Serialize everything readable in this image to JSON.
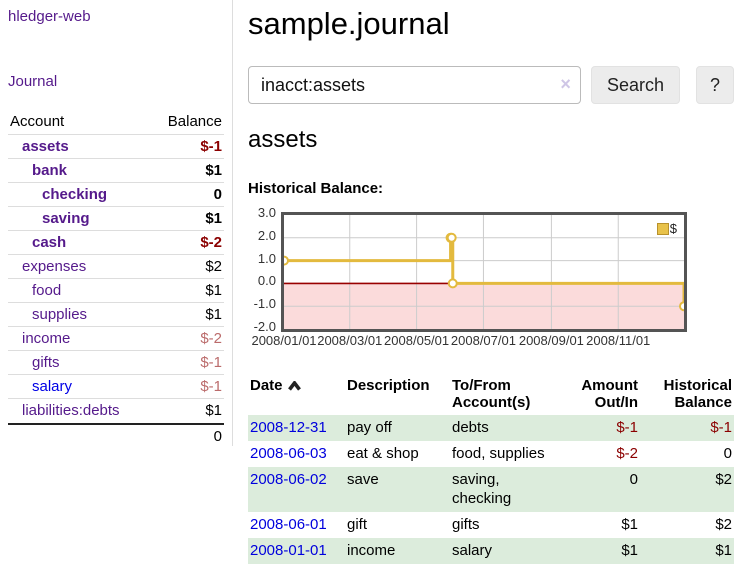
{
  "sidebar": {
    "brand": "hledger-web",
    "nav": {
      "journal": "Journal"
    },
    "accounts": {
      "headers": {
        "account": "Account",
        "balance": "Balance"
      },
      "rows": [
        {
          "name": "assets",
          "balance": "$-1"
        },
        {
          "name": "bank",
          "balance": "$1"
        },
        {
          "name": "checking",
          "balance": "0"
        },
        {
          "name": "saving",
          "balance": "$1"
        },
        {
          "name": "cash",
          "balance": "$-2"
        },
        {
          "name": "expenses",
          "balance": "$2"
        },
        {
          "name": "food",
          "balance": "$1"
        },
        {
          "name": "supplies",
          "balance": "$1"
        },
        {
          "name": "income",
          "balance": "$-2"
        },
        {
          "name": "gifts",
          "balance": "$-1"
        },
        {
          "name": "salary",
          "balance": "$-1"
        },
        {
          "name": "liabilities:debts",
          "balance": "$1"
        }
      ],
      "total": "0"
    }
  },
  "main": {
    "title": "sample.journal",
    "search": {
      "value": "inacct:assets",
      "clear_icon": "×",
      "button_label": "Search",
      "help_label": "?"
    },
    "account_heading": "assets",
    "chart_title": "Historical Balance:"
  },
  "chart_data": {
    "type": "line",
    "step": true,
    "title": "Historical Balance:",
    "legend": "$",
    "legend_position": "top-right",
    "grid": true,
    "x_range": [
      "2008-01-01",
      "2008-12-31"
    ],
    "ylim": [
      -2.0,
      3.0
    ],
    "y_ticks": [
      3.0,
      2.0,
      1.0,
      0.0,
      -1.0,
      -2.0
    ],
    "x_ticks": [
      {
        "date": "2008-01-01",
        "label": "2008/01/01"
      },
      {
        "date": "2008-03-01",
        "label": "2008/03/01"
      },
      {
        "date": "2008-05-01",
        "label": "2008/05/01"
      },
      {
        "date": "2008-07-01",
        "label": "2008/07/01"
      },
      {
        "date": "2008-09-01",
        "label": "2008/09/01"
      },
      {
        "date": "2008-11-01",
        "label": "2008/11/01"
      }
    ],
    "series": [
      {
        "name": "$",
        "color": "#e3ba3e",
        "marker": "open-circle",
        "points": [
          {
            "x": "2008-01-01",
            "y": 1
          },
          {
            "x": "2008-06-01",
            "y": 2
          },
          {
            "x": "2008-06-02",
            "y": 2
          },
          {
            "x": "2008-06-03",
            "y": 0
          },
          {
            "x": "2008-12-31",
            "y": -1
          }
        ]
      }
    ],
    "zero_line_color": "#990000",
    "negative_region_color": "#fbdbdb",
    "gridline_color": "#cccccc"
  },
  "register": {
    "headers": {
      "date": "Date",
      "description": "Description",
      "accounts": "To/From Account(s)",
      "amount": "Amount Out/In",
      "balance": "Historical Balance"
    },
    "rows": [
      {
        "date": "2008-12-31",
        "description": "pay off",
        "accounts": "debts",
        "amount": "$-1",
        "balance": "$-1"
      },
      {
        "date": "2008-06-03",
        "description": "eat & shop",
        "accounts": "food, supplies",
        "amount": "$-2",
        "balance": "0"
      },
      {
        "date": "2008-06-02",
        "description": "save",
        "accounts": "saving, checking",
        "amount": "0",
        "balance": "$2"
      },
      {
        "date": "2008-06-01",
        "description": "gift",
        "accounts": "gifts",
        "amount": "$1",
        "balance": "$2"
      },
      {
        "date": "2008-01-01",
        "description": "income",
        "accounts": "salary",
        "amount": "$1",
        "balance": "$1"
      }
    ]
  }
}
